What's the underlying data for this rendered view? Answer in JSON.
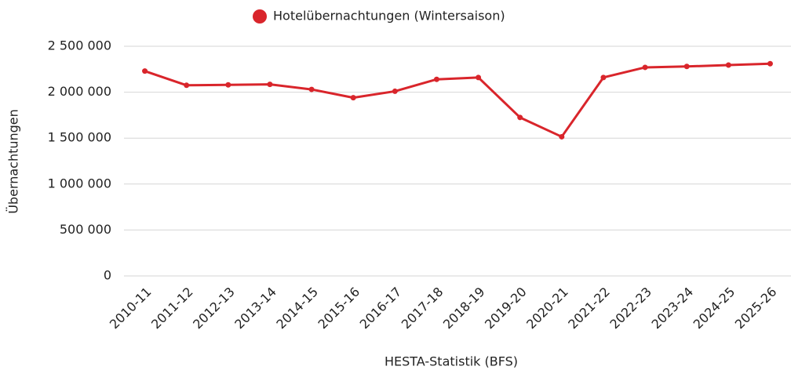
{
  "chart_data": {
    "type": "line",
    "x_label": "HESTA-Statistik (BFS)",
    "y_label": "Übernachtungen",
    "categories": [
      "2010-11",
      "2011-12",
      "2012-13",
      "2013-14",
      "2014-15",
      "2015-16",
      "2016-17",
      "2017-18",
      "2018-19",
      "2019-20",
      "2020-21",
      "2021-22",
      "2022-23",
      "2023-24",
      "2024-25",
      "2025-26"
    ],
    "series": [
      {
        "name": "Hotelübernachtungen (Wintersaison)",
        "color": "#d9252b",
        "values": [
          2230000,
          2075000,
          2080000,
          2085000,
          2030000,
          1940000,
          2010000,
          2140000,
          2160000,
          1725000,
          1515000,
          2160000,
          2270000,
          2280000,
          2295000,
          2310000
        ]
      }
    ],
    "ylim": [
      0,
      2500000
    ],
    "yticks": [
      0,
      {
        "value": 500000,
        "label": "500 000"
      },
      {
        "value": 1000000,
        "label": "1 000 000"
      },
      {
        "value": 1500000,
        "label": "1 500 000"
      },
      {
        "value": 2000000,
        "label": "2 000 000"
      },
      {
        "value": 2500000,
        "label": "2 500 000"
      }
    ],
    "grid": true,
    "legend": "top"
  }
}
